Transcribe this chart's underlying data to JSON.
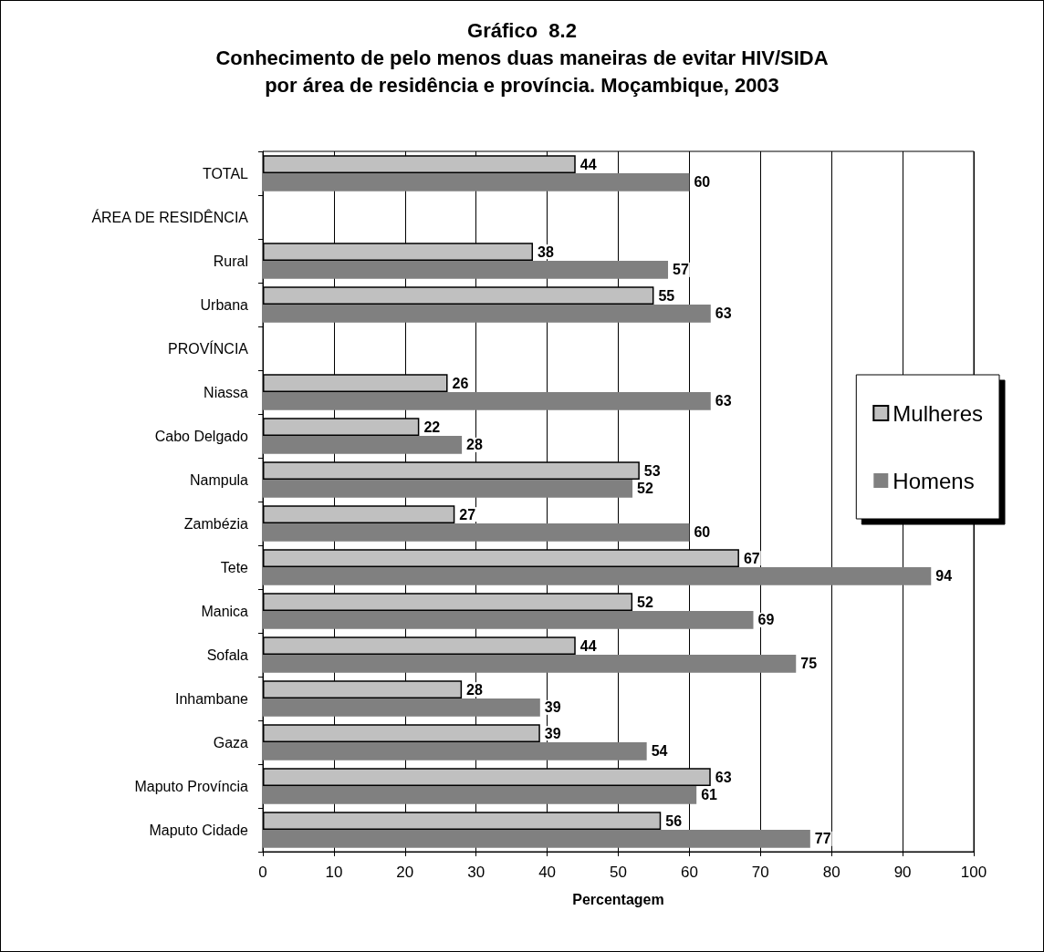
{
  "chart_data": {
    "type": "bar",
    "orientation": "horizontal",
    "title": "Gráfico  8.2\nConhecimento de pelo menos duas maneiras de evitar HIV/SIDA\npor área de residência e província. Moçambique, 2003",
    "xlabel": "Percentagem",
    "categories": [
      "TOTAL",
      "ÁREA DE RESIDÊNCIA",
      "Rural",
      "Urbana",
      "PROVÍNCIA",
      "Niassa",
      "Cabo Delgado",
      "Nampula",
      "Zambézia",
      "Tete",
      "Manica",
      "Sofala",
      "Inhambane",
      "Gaza",
      "Maputo Província",
      "Maputo Cidade"
    ],
    "series": [
      {
        "name": "Mulheres",
        "color": "#c0c0c0",
        "values": [
          44,
          null,
          38,
          55,
          null,
          26,
          22,
          53,
          27,
          67,
          52,
          44,
          28,
          39,
          63,
          56
        ]
      },
      {
        "name": "Homens",
        "color": "#808080",
        "values": [
          60,
          null,
          57,
          63,
          null,
          63,
          28,
          52,
          60,
          94,
          69,
          75,
          39,
          54,
          61,
          77
        ]
      }
    ],
    "xlim": [
      0,
      100
    ],
    "xticks": [
      0,
      10,
      20,
      30,
      40,
      50,
      60,
      70,
      80,
      90,
      100
    ],
    "grid": "x",
    "legend": "right",
    "data_labels": true
  }
}
